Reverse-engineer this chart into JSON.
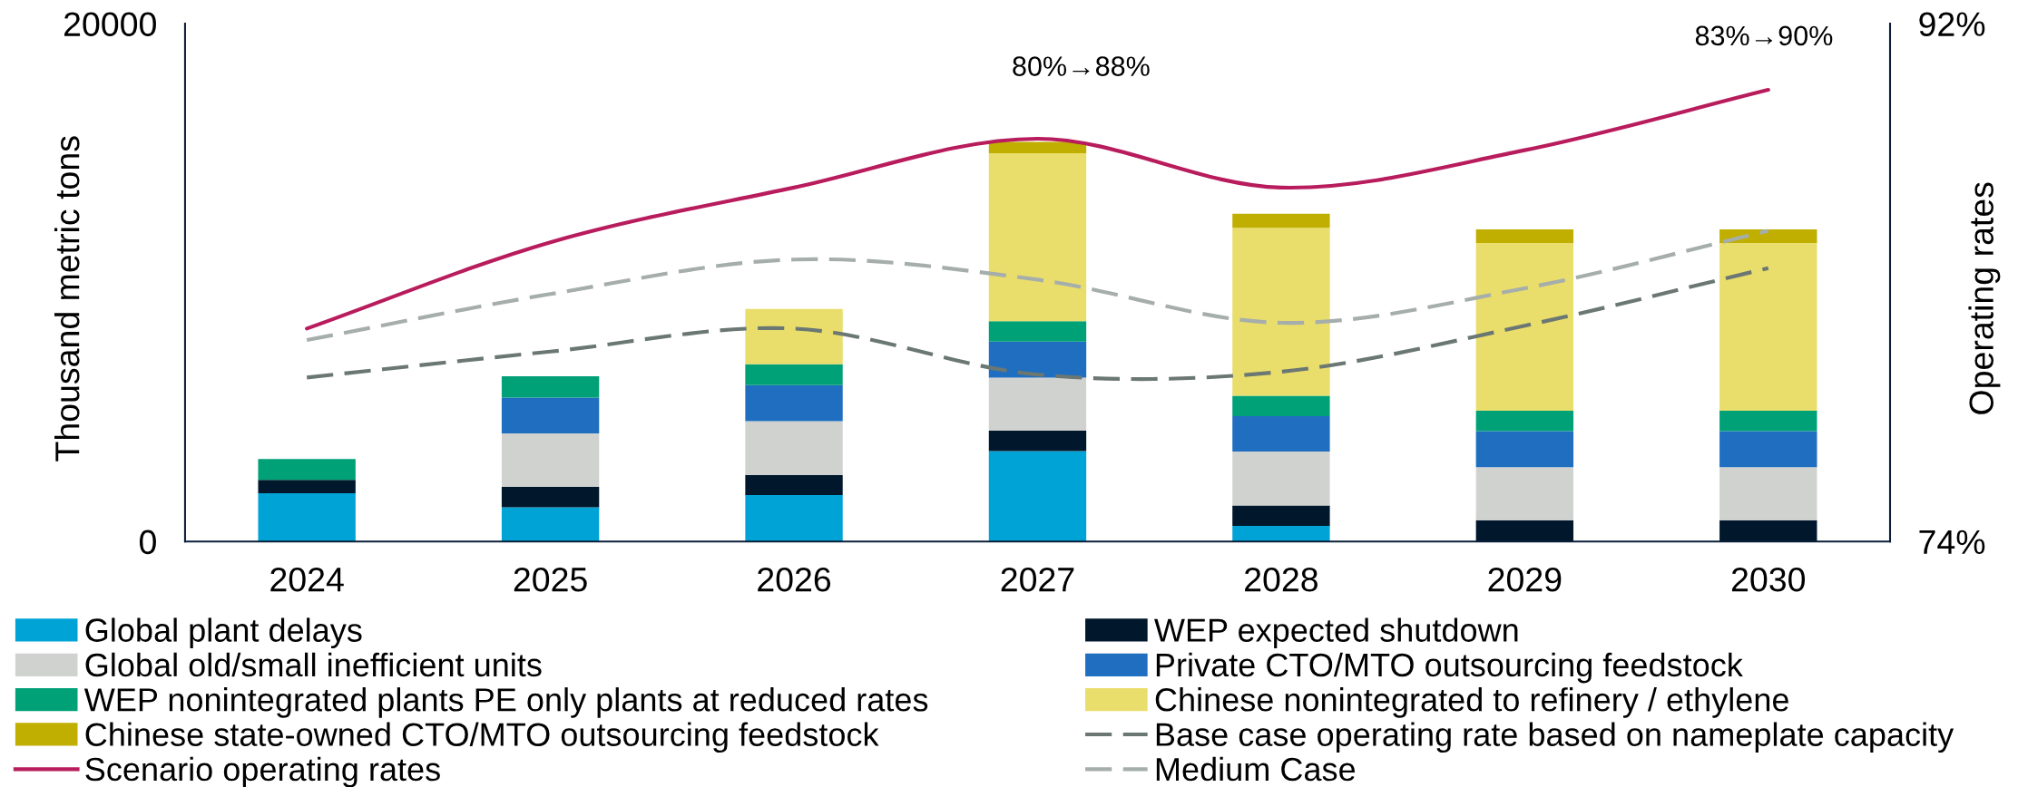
{
  "chart_data": {
    "type": "bar",
    "stacked": true,
    "categories": [
      "2024",
      "2025",
      "2026",
      "2027",
      "2028",
      "2029",
      "2030"
    ],
    "ylabel": "Thousand metric tons",
    "y2label": "Operating rates",
    "ylim": [
      0,
      20000
    ],
    "yticks": [
      0,
      20000
    ],
    "y2lim": [
      74,
      92
    ],
    "y2ticks": [
      {
        "value": 74,
        "label": "74%"
      },
      {
        "value": 92,
        "label": "92%"
      }
    ],
    "series": [
      {
        "name": "Global plant delays",
        "color": "#00a3d6",
        "values": [
          1860,
          1320,
          1790,
          3490,
          600,
          null,
          null
        ]
      },
      {
        "name": "WEP expected shutdown",
        "color": "#01172b",
        "values": [
          520,
          790,
          770,
          790,
          790,
          820,
          820
        ]
      },
      {
        "name": "Global old/small inefficient units",
        "color": "#d0d2d0",
        "values": [
          null,
          2060,
          2090,
          2050,
          2080,
          2050,
          2050
        ]
      },
      {
        "name": "Private CTO/MTO outsourcing feedstock",
        "color": "#1f6ec0",
        "values": [
          null,
          1390,
          1390,
          1390,
          1370,
          1390,
          1390
        ]
      },
      {
        "name": "WEP nonintegrated plants PE only plants at reduced rates",
        "color": "#00a176",
        "values": [
          800,
          820,
          800,
          790,
          790,
          790,
          790
        ]
      },
      {
        "name": "Chinese nonintegrated to refinery / ethylene",
        "color": "#e9dd6c",
        "values": [
          null,
          null,
          2140,
          6480,
          6480,
          6480,
          6480
        ]
      },
      {
        "name": "Chinese state-owned CTO/MTO outsourcing feedstock",
        "color": "#c0af00",
        "values": [
          null,
          null,
          null,
          440,
          550,
          520,
          520
        ]
      },
      {
        "name": "Base case operating rate based on nameplate capacity",
        "type": "line",
        "axis": "y2",
        "line_style": "dashed",
        "color": "#6b7773",
        "values": [
          79.7,
          80.6,
          81.4,
          79.8,
          79.9,
          81.5,
          83.5
        ]
      },
      {
        "name": "Scenario operating rates",
        "type": "line",
        "axis": "y2",
        "line_style": "solid",
        "color": "#b81c5c",
        "values": [
          81.4,
          84.4,
          86.3,
          88.0,
          86.3,
          87.6,
          89.7
        ]
      },
      {
        "name": "Medium Case",
        "type": "line",
        "axis": "y2",
        "line_style": "dashed",
        "color": "#a6aeab",
        "values": [
          81.0,
          82.6,
          83.8,
          83.1,
          81.6,
          82.8,
          84.8
        ]
      }
    ],
    "annotations": [
      "80%→88%",
      "83%→90%"
    ],
    "legend": "bottom"
  }
}
